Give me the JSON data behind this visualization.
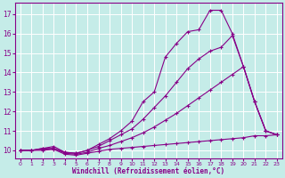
{
  "xlabel": "Windchill (Refroidissement éolien,°C)",
  "xlim": [
    -0.5,
    23.5
  ],
  "ylim": [
    9.6,
    17.6
  ],
  "yticks": [
    10,
    11,
    12,
    13,
    14,
    15,
    16,
    17
  ],
  "xticks": [
    0,
    1,
    2,
    3,
    4,
    5,
    6,
    7,
    8,
    9,
    10,
    11,
    12,
    13,
    14,
    15,
    16,
    17,
    18,
    19,
    20,
    21,
    22,
    23
  ],
  "bg_color": "#c5ece8",
  "grid_color": "#ffffff",
  "line_color": "#880088",
  "lines": [
    {
      "x": [
        0,
        1,
        2,
        3,
        4,
        5,
        6,
        7,
        8,
        9,
        10,
        11,
        12,
        13,
        14,
        15,
        16,
        17,
        18,
        19,
        20,
        21,
        22,
        23
      ],
      "y": [
        10.0,
        10.0,
        10.1,
        10.2,
        9.9,
        9.85,
        10.0,
        10.3,
        10.6,
        11.0,
        11.5,
        12.5,
        13.0,
        14.8,
        15.5,
        16.1,
        16.2,
        17.2,
        17.2,
        16.0,
        14.3,
        12.5,
        11.0,
        10.8
      ]
    },
    {
      "x": [
        0,
        1,
        2,
        3,
        4,
        5,
        6,
        7,
        8,
        9,
        10,
        11,
        12,
        13,
        14,
        15,
        16,
        17,
        18,
        19,
        20,
        21,
        22,
        23
      ],
      "y": [
        10.0,
        10.0,
        10.1,
        10.1,
        9.9,
        9.85,
        10.0,
        10.2,
        10.5,
        10.8,
        11.1,
        11.6,
        12.2,
        12.8,
        13.5,
        14.2,
        14.7,
        15.1,
        15.3,
        15.9,
        14.3,
        12.5,
        11.0,
        10.8
      ]
    },
    {
      "x": [
        0,
        1,
        2,
        3,
        4,
        5,
        6,
        7,
        8,
        9,
        10,
        11,
        12,
        13,
        14,
        15,
        16,
        17,
        18,
        19,
        20,
        21,
        22,
        23
      ],
      "y": [
        10.0,
        10.0,
        10.05,
        10.1,
        9.85,
        9.8,
        9.9,
        10.1,
        10.25,
        10.45,
        10.65,
        10.9,
        11.2,
        11.55,
        11.9,
        12.3,
        12.7,
        13.1,
        13.5,
        13.9,
        14.3,
        12.5,
        11.0,
        10.8
      ]
    },
    {
      "x": [
        0,
        1,
        2,
        3,
        4,
        5,
        6,
        7,
        8,
        9,
        10,
        11,
        12,
        13,
        14,
        15,
        16,
        17,
        18,
        19,
        20,
        21,
        22,
        23
      ],
      "y": [
        10.0,
        10.0,
        10.0,
        10.05,
        9.8,
        9.75,
        9.85,
        9.95,
        10.05,
        10.1,
        10.15,
        10.2,
        10.25,
        10.3,
        10.35,
        10.4,
        10.45,
        10.5,
        10.55,
        10.6,
        10.65,
        10.75,
        10.75,
        10.8
      ]
    }
  ]
}
